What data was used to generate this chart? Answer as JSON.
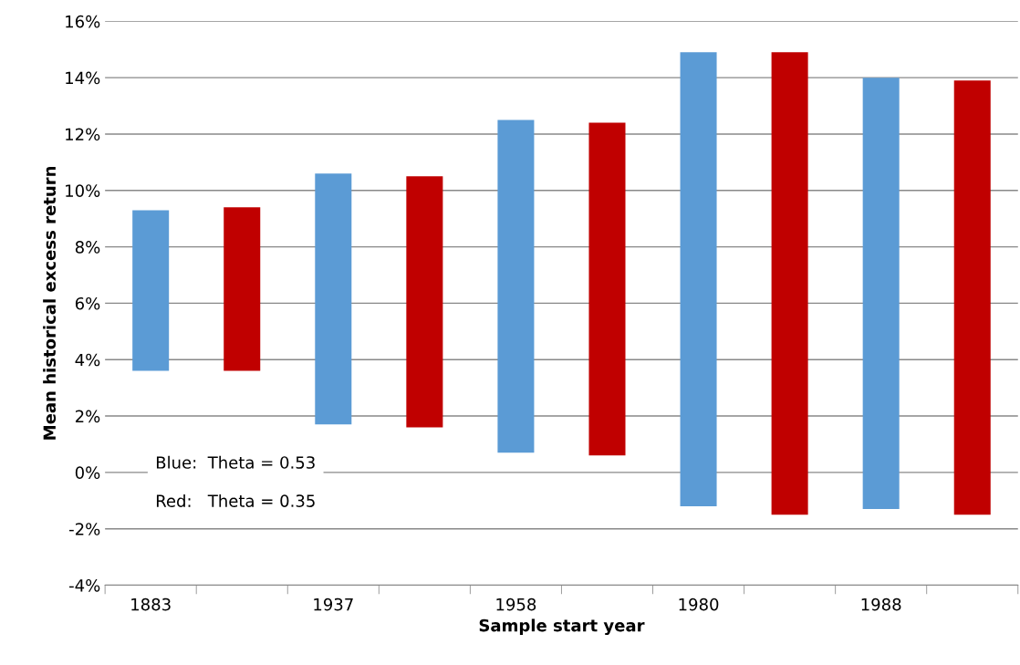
{
  "chart_data": {
    "type": "bar",
    "xlabel": "Sample start year",
    "ylabel": "Mean historical excess return",
    "categories": [
      "1883",
      null,
      "1937",
      null,
      "1958",
      null,
      "1980",
      null,
      "1988",
      null
    ],
    "base": [
      3.6,
      3.6,
      1.7,
      1.6,
      0.7,
      0.6,
      -1.2,
      -1.5,
      -1.3,
      -1.5
    ],
    "values": [
      5.7,
      5.8,
      8.9,
      8.9,
      11.8,
      11.8,
      16.1,
      16.4,
      15.3,
      15.4
    ],
    "colors": [
      "#5b9bd5",
      "#c00000",
      "#5b9bd5",
      "#c00000",
      "#5b9bd5",
      "#c00000",
      "#5b9bd5",
      "#c00000",
      "#5b9bd5",
      "#c00000"
    ],
    "ylim": [
      -4,
      16
    ],
    "yticks": [
      {
        "value": -4,
        "label": "-4%"
      },
      {
        "value": -2,
        "label": "-2%"
      },
      {
        "value": 0,
        "label": "0%"
      },
      {
        "value": 2,
        "label": "2%"
      },
      {
        "value": 4,
        "label": "4%"
      },
      {
        "value": 6,
        "label": "6%"
      },
      {
        "value": 8,
        "label": "8%"
      },
      {
        "value": 10,
        "label": "10%"
      },
      {
        "value": 12,
        "label": "12%"
      },
      {
        "value": 14,
        "label": "14%"
      },
      {
        "value": 16,
        "label": "16%"
      }
    ],
    "grid": "y",
    "legend": false,
    "annotations": [
      "Blue:  Theta = 0.53",
      "Red:   Theta = 0.35"
    ]
  }
}
